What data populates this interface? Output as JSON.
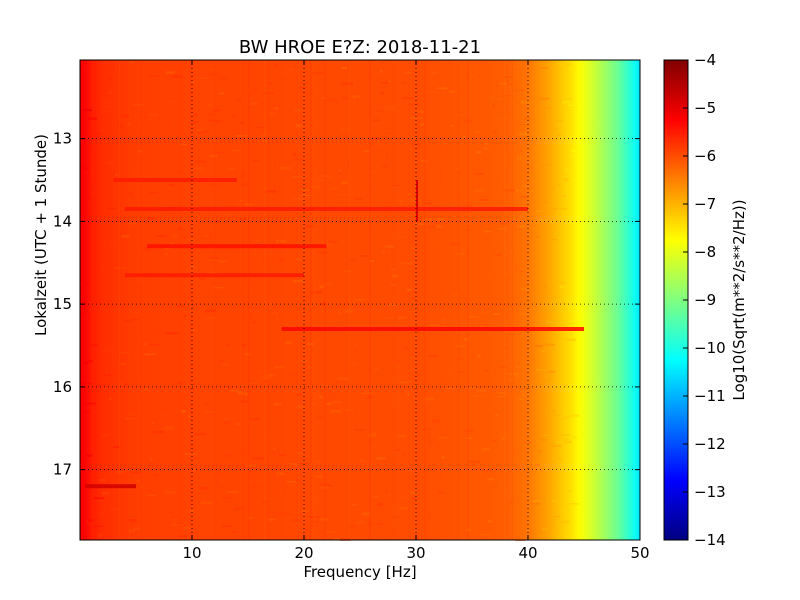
{
  "chart_data": {
    "type": "heatmap",
    "title": "BW HROE E?Z: 2018-11-21",
    "xlabel": "Frequency [Hz]",
    "ylabel": "Lokalzeit (UTC + 1 Stunde)",
    "colorbar_label": "Log10(Sqrt(m**2/s**2/Hz))",
    "xlim": [
      0,
      50
    ],
    "ylim": [
      12.05,
      17.85
    ],
    "y_inverted": true,
    "x_ticks": [
      10,
      20,
      30,
      40,
      50
    ],
    "x_tick_labels": [
      "10",
      "20",
      "30",
      "40",
      "50"
    ],
    "y_ticks": [
      13,
      14,
      15,
      16,
      17
    ],
    "y_tick_labels": [
      "13",
      "14",
      "15",
      "16",
      "17"
    ],
    "colorbar_range": [
      -14,
      -4
    ],
    "colorbar_ticks": [
      -4,
      -5,
      -6,
      -7,
      -8,
      -9,
      -10,
      -11,
      -12,
      -13,
      -14
    ],
    "colorbar_tick_labels": [
      "−4",
      "−5",
      "−6",
      "−7",
      "−8",
      "−9",
      "−10",
      "−11",
      "−12",
      "−13",
      "−14"
    ],
    "colormap": "jet",
    "grid": true,
    "frequency_profile": {
      "frequency_hz": [
        0.2,
        1,
        2,
        5,
        10,
        20,
        30,
        38,
        40,
        42,
        44,
        46,
        48,
        49.5,
        50
      ],
      "log10_amplitude": [
        -5.2,
        -5.5,
        -5.7,
        -5.85,
        -5.9,
        -5.95,
        -6.0,
        -6.15,
        -6.4,
        -6.9,
        -7.5,
        -8.3,
        -9.2,
        -10.1,
        -10.5
      ]
    },
    "bands": [
      {
        "time": 13.5,
        "from_hz": 3,
        "to_hz": 14,
        "log10_amplitude": -5.5
      },
      {
        "time": 13.85,
        "from_hz": 4,
        "to_hz": 40,
        "log10_amplitude": -5.5
      },
      {
        "time": 14.3,
        "from_hz": 6,
        "to_hz": 22,
        "log10_amplitude": -5.4
      },
      {
        "time": 14.65,
        "from_hz": 4,
        "to_hz": 20,
        "log10_amplitude": -5.5
      },
      {
        "time": 15.3,
        "from_hz": 18,
        "to_hz": 45,
        "log10_amplitude": -5.3
      },
      {
        "time": 17.2,
        "from_hz": 0.5,
        "to_hz": 5,
        "log10_amplitude": -4.8
      }
    ],
    "spikes": [
      {
        "freq_hz": 30,
        "from_time": 13.5,
        "to_time": 14.0,
        "log10_amplitude": -5.0
      }
    ]
  }
}
